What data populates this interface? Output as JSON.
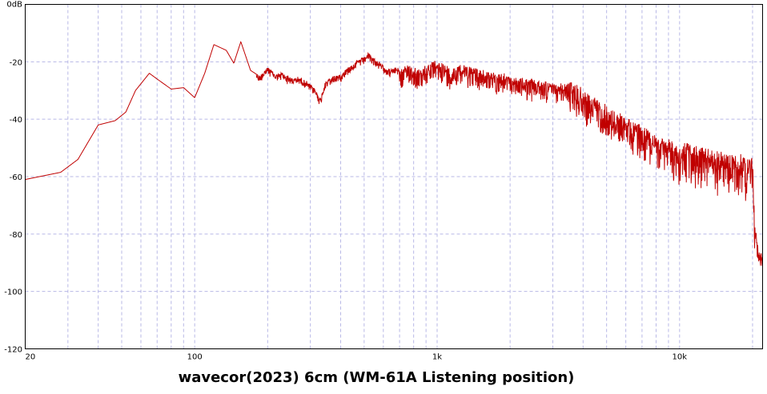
{
  "chart_data": {
    "type": "line",
    "title": "wavecor(2023) 6cm (WM-61A Listening position)",
    "xlabel": "",
    "ylabel": "",
    "x_scale": "log",
    "xlim": [
      20,
      22000
    ],
    "ylim": [
      -120,
      0
    ],
    "grid": true,
    "y_ticks": [
      {
        "value": 0,
        "label": "0dB"
      },
      {
        "value": -20,
        "label": "-20"
      },
      {
        "value": -40,
        "label": "-40"
      },
      {
        "value": -60,
        "label": "-60"
      },
      {
        "value": -80,
        "label": "-80"
      },
      {
        "value": -100,
        "label": "-100"
      },
      {
        "value": -120,
        "label": "-120"
      }
    ],
    "x_ticks": [
      {
        "value": 20,
        "label": "20"
      },
      {
        "value": 100,
        "label": "100"
      },
      {
        "value": 1000,
        "label": "1k"
      },
      {
        "value": 10000,
        "label": "10k"
      }
    ],
    "series": [
      {
        "color": "#c00000",
        "x": [
          20,
          28,
          33,
          40,
          47,
          52,
          57,
          65,
          70,
          80,
          90,
          100,
          110,
          120,
          135,
          145,
          155,
          170,
          185,
          200,
          215,
          230,
          250,
          270,
          290,
          310,
          330,
          345,
          360,
          380,
          400,
          430,
          460,
          500,
          520,
          540,
          570,
          600,
          640,
          680,
          720,
          760,
          800,
          860,
          920,
          980,
          1050,
          1150,
          1250,
          1350,
          1450,
          1600,
          1700,
          1900,
          2100,
          2300,
          2600,
          3000,
          3300,
          3700,
          4000,
          4300,
          4800,
          5300,
          6000,
          6700,
          7500,
          8200,
          9000,
          10000,
          11000,
          12000,
          13000,
          14000,
          15000,
          16000,
          17000,
          18000,
          19000,
          20000,
          20500,
          21000,
          21500,
          22000
        ],
        "y": [
          -61,
          -58.5,
          -54,
          -42,
          -40.5,
          -37.5,
          -30,
          -24,
          -26,
          -29.5,
          -29,
          -32.5,
          -24,
          -14,
          -16,
          -20.5,
          -13,
          -23,
          -25,
          -22,
          -24.5,
          -24,
          -26,
          -25.5,
          -27,
          -29,
          -33,
          -27,
          -26,
          -25,
          -24.5,
          -22,
          -20,
          -18.5,
          -17,
          -18.5,
          -20,
          -21.5,
          -23,
          -22,
          -23.5,
          -21,
          -22.5,
          -23.5,
          -21,
          -20.5,
          -21,
          -23,
          -21,
          -22,
          -23,
          -24,
          -24.5,
          -25,
          -26,
          -26.5,
          -27,
          -28,
          -28.5,
          -28,
          -31,
          -33,
          -35,
          -38,
          -40,
          -42.5,
          -45,
          -47,
          -48.5,
          -50,
          -50,
          -51,
          -52,
          -52.5,
          -53,
          -53,
          -53.5,
          -54,
          -54,
          -55,
          -78,
          -84,
          -87,
          -88
        ]
      }
    ]
  }
}
